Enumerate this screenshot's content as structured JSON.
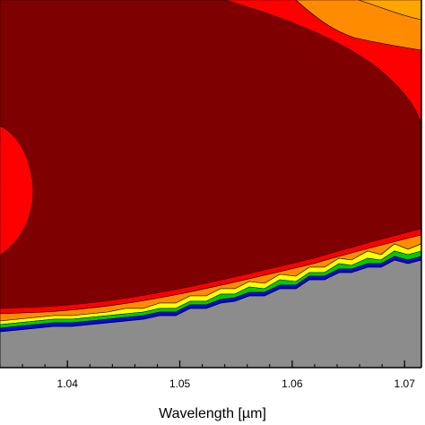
{
  "chart_data": {
    "type": "heatmap",
    "title": "",
    "xlabel": "Wavelength [µm]",
    "ylabel": "",
    "xlim": [
      1.034,
      1.0715
    ],
    "x_ticks": [
      1.04,
      1.05,
      1.06,
      1.07
    ],
    "x_tick_labels": [
      "1.04",
      "1.05",
      "1.06",
      "1.07"
    ],
    "y_ticks_visible": false,
    "grid": false,
    "legend": "none",
    "colors": {
      "dark_red": "#7f0000",
      "red": "#ff0000",
      "orange": "#ff8c00",
      "yellow_orange": "#ffa500",
      "yellow": "#ffff00",
      "green": "#00cc00",
      "cyan": "#00ffff",
      "blue": "#0000ff",
      "gray_region": "#8c8c8c",
      "background": "#ffffff"
    }
  }
}
